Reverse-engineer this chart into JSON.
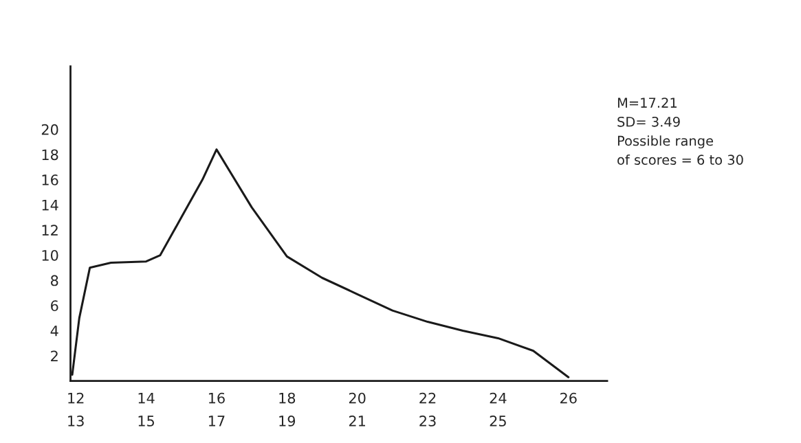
{
  "chart_data": {
    "type": "line",
    "x": [
      11.9,
      12.1,
      12.4,
      13,
      14,
      14.4,
      15,
      15.6,
      16,
      17,
      18,
      19,
      20,
      21,
      22,
      23,
      24,
      25,
      26
    ],
    "series": [
      {
        "color": "#1a1a1a",
        "values": [
          0.5,
          5,
          9,
          9.4,
          9.5,
          10,
          13,
          16,
          18.4,
          13.8,
          9.9,
          8.2,
          6.9,
          5.6,
          4.7,
          4,
          3.4,
          2.4,
          0.3
        ]
      }
    ],
    "xlim": [
      11.85,
      27.1
    ],
    "ylim": [
      0,
      25
    ],
    "xticks": [
      12,
      14,
      16,
      18,
      20,
      22,
      24,
      26
    ],
    "x2lim": [
      12.85,
      28.1
    ],
    "x2ticks": [
      13,
      15,
      17,
      19,
      21,
      23,
      25
    ],
    "yticks": [
      2,
      4,
      6,
      8,
      10,
      12,
      14,
      16,
      18,
      20
    ],
    "grid": false,
    "legend": false,
    "marker": "none",
    "line_style": "solid",
    "annotations": [
      "M=17.21\nSD= 3.49\nPossible range\nof scores = 6 to 30"
    ]
  }
}
